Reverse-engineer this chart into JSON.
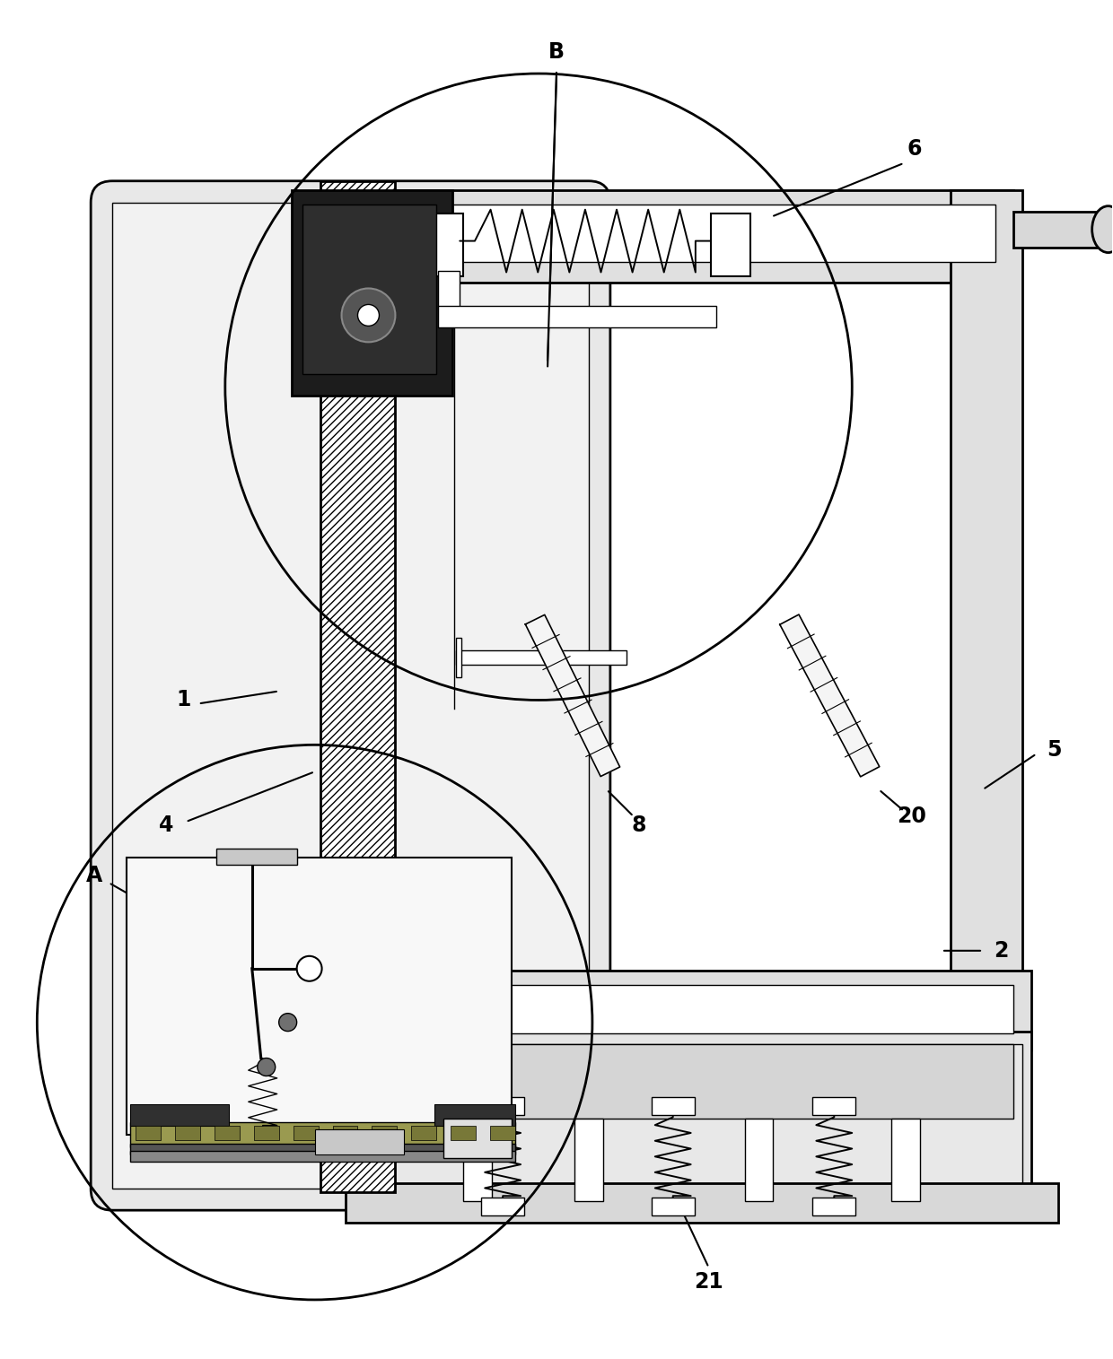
{
  "bg_color": "#ffffff",
  "line_color": "#000000",
  "figsize": [
    12.4,
    15.15
  ],
  "dpi": 100
}
